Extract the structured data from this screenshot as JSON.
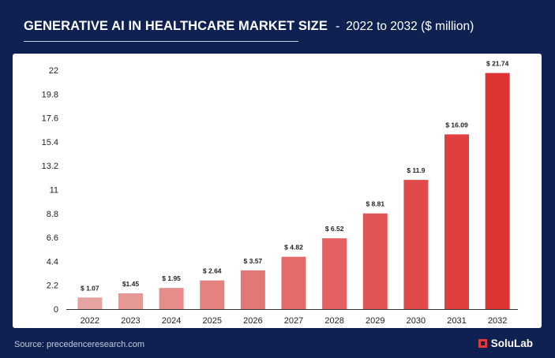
{
  "header": {
    "title": "GENERATIVE AI IN HEALTHCARE MARKET SIZE",
    "separator": "-",
    "subtitle": "2022 to 2032 ($ million)"
  },
  "footer": {
    "source": "Source: precedenceresearch.com",
    "brand": "SoluLab"
  },
  "colors": {
    "background": "#0f2150",
    "card": "#ffffff",
    "bar_light": "#e5a3a1",
    "bar_dark": "#e03434"
  },
  "chart_data": {
    "type": "bar",
    "categories": [
      "2022",
      "2023",
      "2024",
      "2025",
      "2026",
      "2027",
      "2028",
      "2029",
      "2030",
      "2031",
      "2032"
    ],
    "values": [
      1.07,
      1.45,
      1.95,
      2.64,
      3.57,
      4.82,
      6.52,
      8.81,
      11.9,
      16.09,
      21.74
    ],
    "data_labels": [
      "$ 1.07",
      "$1.45",
      "$ 1.95",
      "$ 2.64",
      "$ 3.57",
      "$ 4.82",
      "$ 6.52",
      "$ 8.81",
      "$ 11.9",
      "$ 16.09",
      "$ 21.74"
    ],
    "yticks": [
      "0",
      "2.2",
      "4.4",
      "6.6",
      "8.8",
      "11",
      "13.2",
      "15.4",
      "17.6",
      "19.8",
      "22"
    ],
    "ylim": [
      0,
      22
    ],
    "grid": false
  }
}
